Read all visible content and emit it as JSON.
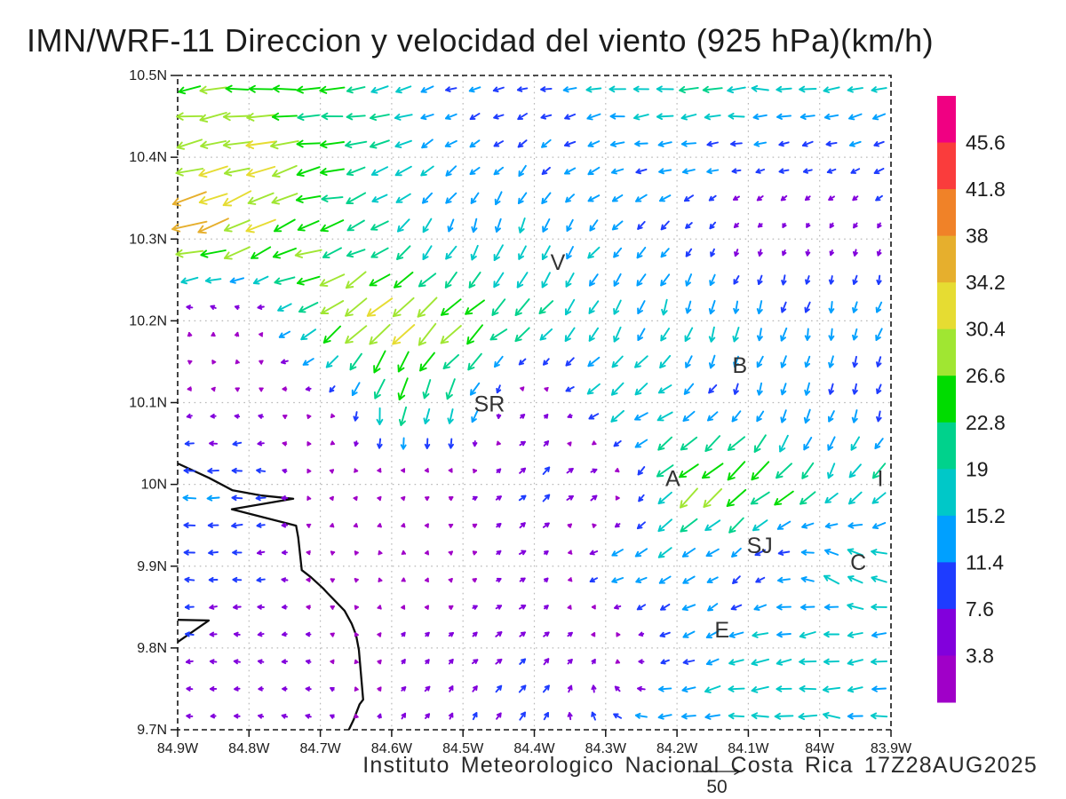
{
  "title": "IMN/WRF-11 Direccion y velocidad del viento (925 hPa)(km/h)",
  "footer": {
    "credit": "Instituto Meteorologico Nacional Costa Rica  17Z28AUG2025",
    "ref_vector_label": "50",
    "ref_vector_kmh": 50
  },
  "chart_data": {
    "type": "quiver",
    "units": "km/h",
    "pressure_level": "925 hPa",
    "model": "IMN/WRF-11",
    "valid_time": "17Z28AUG2025",
    "x_tick_labels": [
      "84.9W",
      "84.8W",
      "84.7W",
      "84.6W",
      "84.5W",
      "84.4W",
      "84.3W",
      "84.2W",
      "84.1W",
      "84W",
      "83.9W"
    ],
    "y_tick_labels": [
      "10.5N",
      "10.4N",
      "10.3N",
      "10.2N",
      "10.1N",
      "10N",
      "9.9N",
      "9.8N",
      "9.7N"
    ],
    "lon_range_w": [
      84.9,
      83.9
    ],
    "lat_range_n": [
      10.5,
      9.7
    ],
    "grid_lines": "dotted every 0.1 degree",
    "legend_position": "right",
    "speed_levels_kmh": [
      3.8,
      7.6,
      11.4,
      15.2,
      19,
      22.8,
      26.6,
      30.4,
      34.2,
      38,
      41.8,
      45.6
    ],
    "palette_low_to_high": [
      "#A000C8",
      "#8200DC",
      "#1E3CFF",
      "#00A0FF",
      "#00C8C8",
      "#00D28C",
      "#00DC00",
      "#A0E632",
      "#E6DC32",
      "#E6AF2D",
      "#F08228",
      "#FA3C3C",
      "#F00082"
    ],
    "colorbar_labels_top_to_bottom": [
      "45.6",
      "41.8",
      "38",
      "34.2",
      "30.4",
      "26.6",
      "22.8",
      "19",
      "15.2",
      "11.4",
      "7.6",
      "3.8"
    ],
    "grid": {
      "lons_w": [
        84.9,
        84.8,
        84.7,
        84.6,
        84.5,
        84.4,
        84.3,
        84.2,
        84.1,
        84.0,
        83.9
      ],
      "lats_n": [
        10.5,
        10.4,
        10.3,
        10.2,
        10.1,
        10.0,
        9.9,
        9.8,
        9.7
      ],
      "u_kmh": [
        [
          -26,
          -26,
          -24,
          -18,
          -10,
          -11,
          -15,
          -19,
          -21,
          -16,
          -15
        ],
        [
          -30,
          -28,
          -26,
          -16,
          -10,
          -9,
          -12,
          -12,
          -10,
          -9,
          -11
        ],
        [
          -40,
          -28,
          -24,
          -13,
          -4,
          -3,
          -10,
          -7,
          -2,
          -1,
          -1
        ],
        [
          0,
          2,
          -24,
          -26,
          -22,
          -16,
          -6,
          -5,
          -4,
          -3,
          -4
        ],
        [
          -4,
          -3,
          -2,
          -4,
          -8,
          6,
          -18,
          -12,
          -4,
          -3,
          -2
        ],
        [
          -13,
          -12,
          2,
          2,
          3,
          7,
          10,
          -20,
          -24,
          -10,
          -12
        ],
        [
          -9,
          -9,
          -2,
          -1,
          2,
          6,
          -14,
          -12,
          -6,
          -14,
          -18
        ],
        [
          -8,
          -5,
          -4,
          3,
          5,
          6,
          4,
          -10,
          -16,
          -16,
          -14
        ],
        [
          -5,
          -5,
          -5,
          3,
          3,
          6,
          -8,
          -16,
          -18,
          -19,
          -15
        ]
      ],
      "v_kmh": [
        [
          -2,
          0,
          -3,
          -4,
          -2,
          -2,
          -1,
          -1,
          0,
          -1,
          -2
        ],
        [
          -5,
          -8,
          -4,
          -8,
          -8,
          -7,
          -3,
          -3,
          -2,
          -3,
          -4
        ],
        [
          -10,
          -14,
          -6,
          -12,
          -14,
          -16,
          -10,
          -7,
          -4,
          -4,
          -5
        ],
        [
          4,
          4,
          -18,
          -20,
          -18,
          -14,
          -14,
          -15,
          -14,
          -12,
          -12
        ],
        [
          -1,
          1,
          2,
          -24,
          -18,
          6,
          -12,
          -8,
          -10,
          -12,
          -10
        ],
        [
          0,
          -1,
          2,
          2,
          2,
          7,
          5,
          -18,
          -20,
          -16,
          -16
        ],
        [
          0,
          -1,
          1,
          2,
          1,
          3,
          -6,
          -8,
          -6,
          8,
          10
        ],
        [
          0,
          0,
          0,
          3,
          4,
          5,
          4,
          -5,
          -5,
          -4,
          -4
        ],
        [
          1,
          0,
          2,
          5,
          6,
          8,
          8,
          -2,
          0,
          3,
          2
        ]
      ]
    },
    "cities": [
      {
        "label": "V",
        "fx": 0.533,
        "fy": 0.286
      },
      {
        "label": "B",
        "fx": 0.788,
        "fy": 0.444
      },
      {
        "label": "SR",
        "fx": 0.437,
        "fy": 0.503
      },
      {
        "label": "A",
        "fx": 0.694,
        "fy": 0.617
      },
      {
        "label": "I",
        "fx": 0.985,
        "fy": 0.617
      },
      {
        "label": "SJ",
        "fx": 0.816,
        "fy": 0.719
      },
      {
        "label": "C",
        "fx": 0.954,
        "fy": 0.745
      },
      {
        "label": "E",
        "fx": 0.763,
        "fy": 0.848
      }
    ],
    "coastline": {
      "main": [
        [
          0.0,
          0.593
        ],
        [
          0.044,
          0.615
        ],
        [
          0.077,
          0.634
        ],
        [
          0.118,
          0.642
        ],
        [
          0.162,
          0.647
        ],
        [
          0.076,
          0.663
        ],
        [
          0.166,
          0.688
        ],
        [
          0.169,
          0.706
        ],
        [
          0.174,
          0.756
        ],
        [
          0.187,
          0.767
        ],
        [
          0.204,
          0.784
        ],
        [
          0.21,
          0.791
        ],
        [
          0.234,
          0.818
        ],
        [
          0.244,
          0.838
        ],
        [
          0.25,
          0.855
        ],
        [
          0.254,
          0.878
        ],
        [
          0.26,
          0.954
        ],
        [
          0.255,
          0.961
        ],
        [
          0.247,
          0.984
        ],
        [
          0.24,
          1.0
        ]
      ],
      "islet": [
        [
          0.0,
          0.832
        ],
        [
          0.0436,
          0.833
        ],
        [
          0.0,
          0.866
        ]
      ]
    }
  }
}
